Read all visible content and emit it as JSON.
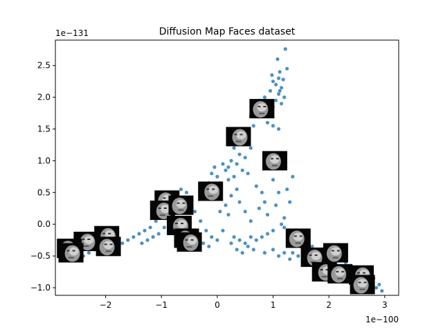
{
  "chart_data": {
    "type": "scatter",
    "title": "Diffusion Map Faces dataset",
    "xlabel": "",
    "ylabel": "",
    "x_offset_text": "1e−100",
    "y_offset_text": "1e−131",
    "xlim": [
      -2.9,
      3.25
    ],
    "ylim": [
      -1.12,
      2.9
    ],
    "x_ticks": [
      -2,
      -1,
      0,
      1,
      2,
      3
    ],
    "x_tick_labels": [
      "−2",
      "−1",
      "0",
      "1",
      "2",
      "3"
    ],
    "y_ticks": [
      -1.0,
      -0.5,
      0.0,
      0.5,
      1.0,
      1.5,
      2.0,
      2.5
    ],
    "y_tick_labels": [
      "−1.0",
      "−0.5",
      "0.0",
      "0.5",
      "1.0",
      "1.5",
      "2.0",
      "2.5"
    ],
    "grid": false,
    "legend": "none",
    "marker_color": "#1f77b4",
    "points": [
      [
        1.22,
        2.76
      ],
      [
        1.12,
        2.4
      ],
      [
        1.1,
        2.3
      ],
      [
        1.05,
        2.2
      ],
      [
        1.0,
        2.25
      ],
      [
        1.15,
        2.15
      ],
      [
        1.2,
        2.0
      ],
      [
        1.1,
        2.05
      ],
      [
        0.95,
        2.1
      ],
      [
        1.05,
        1.95
      ],
      [
        0.9,
        1.9
      ],
      [
        1.0,
        1.85
      ],
      [
        0.85,
        2.0
      ],
      [
        1.15,
        1.9
      ],
      [
        0.75,
        1.95
      ],
      [
        0.8,
        1.8
      ],
      [
        0.7,
        1.75
      ],
      [
        0.6,
        1.7
      ],
      [
        0.65,
        1.55
      ],
      [
        0.55,
        1.5
      ],
      [
        0.9,
        1.6
      ],
      [
        1.0,
        1.55
      ],
      [
        1.1,
        1.5
      ],
      [
        0.5,
        1.4
      ],
      [
        0.45,
        1.3
      ],
      [
        0.6,
        1.2
      ],
      [
        0.4,
        1.1
      ],
      [
        0.3,
        1.2
      ],
      [
        0.5,
        1.05
      ],
      [
        0.35,
        0.95
      ],
      [
        0.25,
        1.0
      ],
      [
        0.2,
        0.9
      ],
      [
        0.15,
        0.85
      ],
      [
        0.1,
        0.95
      ],
      [
        -0.05,
        0.9
      ],
      [
        -0.1,
        0.8
      ],
      [
        0.0,
        0.75
      ],
      [
        0.05,
        0.65
      ],
      [
        -0.15,
        0.65
      ],
      [
        0.2,
        0.7
      ],
      [
        0.3,
        0.75
      ],
      [
        0.45,
        0.85
      ],
      [
        0.55,
        0.8
      ],
      [
        0.7,
        0.6
      ],
      [
        0.8,
        0.5
      ],
      [
        0.85,
        0.35
      ],
      [
        0.75,
        0.25
      ],
      [
        0.9,
        0.15
      ],
      [
        1.0,
        0.7
      ],
      [
        1.1,
        0.5
      ],
      [
        1.05,
        0.3
      ],
      [
        1.2,
        0.1
      ],
      [
        1.15,
        0.0
      ],
      [
        1.25,
        0.55
      ],
      [
        1.35,
        0.75
      ],
      [
        1.3,
        0.35
      ],
      [
        1.2,
        -0.05
      ],
      [
        1.0,
        -0.1
      ],
      [
        0.9,
        -0.15
      ],
      [
        0.8,
        -0.2
      ],
      [
        0.7,
        -0.25
      ],
      [
        0.6,
        -0.2
      ],
      [
        0.5,
        -0.3
      ],
      [
        0.4,
        -0.25
      ],
      [
        0.3,
        -0.2
      ],
      [
        0.25,
        -0.3
      ],
      [
        0.35,
        -0.4
      ],
      [
        0.45,
        -0.45
      ],
      [
        0.55,
        -0.35
      ],
      [
        0.65,
        -0.4
      ],
      [
        0.85,
        -0.45
      ],
      [
        1.0,
        -0.4
      ],
      [
        1.1,
        -0.5
      ],
      [
        1.2,
        -0.45
      ],
      [
        1.3,
        -0.55
      ],
      [
        1.45,
        -0.5
      ],
      [
        1.55,
        -0.55
      ],
      [
        1.65,
        -0.6
      ],
      [
        1.75,
        -0.55
      ],
      [
        1.85,
        -0.65
      ],
      [
        1.95,
        -0.6
      ],
      [
        2.05,
        -0.7
      ],
      [
        2.15,
        -0.65
      ],
      [
        2.25,
        -0.75
      ],
      [
        2.35,
        -0.7
      ],
      [
        2.45,
        -0.8
      ],
      [
        2.55,
        -0.85
      ],
      [
        2.65,
        -0.9
      ],
      [
        2.75,
        -0.95
      ],
      [
        2.85,
        -1.0
      ],
      [
        2.95,
        -1.05
      ],
      [
        2.9,
        -0.95
      ],
      [
        2.8,
        -0.85
      ],
      [
        2.6,
        -0.75
      ],
      [
        2.5,
        -0.7
      ],
      [
        0.1,
        -0.1
      ],
      [
        0.0,
        -0.25
      ],
      [
        -0.1,
        -0.2
      ],
      [
        -0.2,
        -0.1
      ],
      [
        -0.3,
        0.05
      ],
      [
        -0.4,
        0.2
      ],
      [
        -0.5,
        0.35
      ],
      [
        -0.55,
        0.5
      ],
      [
        -0.65,
        0.55
      ],
      [
        -0.7,
        0.4
      ],
      [
        -0.8,
        0.3
      ],
      [
        -0.9,
        0.2
      ],
      [
        -1.0,
        0.1
      ],
      [
        -1.1,
        0.05
      ],
      [
        -1.2,
        -0.05
      ],
      [
        -1.3,
        -0.1
      ],
      [
        -1.4,
        -0.15
      ],
      [
        -1.5,
        -0.2
      ],
      [
        -1.6,
        -0.25
      ],
      [
        -1.7,
        -0.3
      ],
      [
        -1.8,
        -0.35
      ],
      [
        -1.9,
        -0.3
      ],
      [
        -2.0,
        -0.25
      ],
      [
        -2.1,
        -0.35
      ],
      [
        -2.2,
        -0.4
      ],
      [
        -2.3,
        -0.45
      ],
      [
        -2.4,
        -0.5
      ],
      [
        -2.5,
        -0.4
      ],
      [
        -2.6,
        -0.55
      ],
      [
        -1.35,
        -0.3
      ],
      [
        -1.25,
        -0.25
      ],
      [
        -1.15,
        -0.2
      ],
      [
        -1.05,
        -0.15
      ],
      [
        -0.95,
        -0.05
      ],
      [
        -0.85,
        0.0
      ],
      [
        -0.75,
        -0.1
      ],
      [
        -0.6,
        -0.15
      ],
      [
        -0.45,
        -0.1
      ],
      [
        -0.35,
        -0.2
      ],
      [
        -0.25,
        -0.3
      ],
      [
        -0.15,
        -0.35
      ],
      [
        0.15,
        0.3
      ],
      [
        0.25,
        0.45
      ],
      [
        0.35,
        0.55
      ],
      [
        0.4,
        0.35
      ],
      [
        0.5,
        0.2
      ],
      [
        0.6,
        0.05
      ],
      [
        0.2,
        0.15
      ],
      [
        0.05,
        0.2
      ],
      [
        -0.05,
        0.45
      ],
      [
        1.4,
        -0.2
      ],
      [
        1.5,
        -0.35
      ],
      [
        1.35,
        -0.45
      ],
      [
        1.6,
        -0.45
      ],
      [
        1.7,
        -0.35
      ],
      [
        1.9,
        -0.5
      ],
      [
        2.1,
        -0.55
      ],
      [
        2.3,
        -0.6
      ],
      [
        1.12,
        2.1
      ],
      [
        1.18,
        2.28
      ],
      [
        0.98,
        2.35
      ],
      [
        1.08,
        2.6
      ],
      [
        1.25,
        2.45
      ]
    ],
    "image_thumbnails": [
      {
        "x": 0.8,
        "y": 1.82
      },
      {
        "x": 0.38,
        "y": 1.38
      },
      {
        "x": 1.03,
        "y": 1.0
      },
      {
        "x": -0.12,
        "y": 0.52
      },
      {
        "x": -0.9,
        "y": 0.38
      },
      {
        "x": -0.98,
        "y": 0.22
      },
      {
        "x": -0.65,
        "y": 0.3
      },
      {
        "x": -0.68,
        "y": -0.02
      },
      {
        "x": -0.55,
        "y": -0.22
      },
      {
        "x": -0.5,
        "y": -0.28
      },
      {
        "x": 1.45,
        "y": -0.22
      },
      {
        "x": 1.72,
        "y": -0.52
      },
      {
        "x": 2.12,
        "y": -0.45
      },
      {
        "x": 1.92,
        "y": -0.75
      },
      {
        "x": 2.2,
        "y": -0.78
      },
      {
        "x": 2.58,
        "y": -0.8
      },
      {
        "x": 2.6,
        "y": -0.95
      },
      {
        "x": -1.98,
        "y": -0.18
      },
      {
        "x": -1.95,
        "y": -0.35
      },
      {
        "x": -2.35,
        "y": -0.27
      },
      {
        "x": -2.65,
        "y": -0.38
      },
      {
        "x": -2.62,
        "y": -0.45
      }
    ]
  }
}
